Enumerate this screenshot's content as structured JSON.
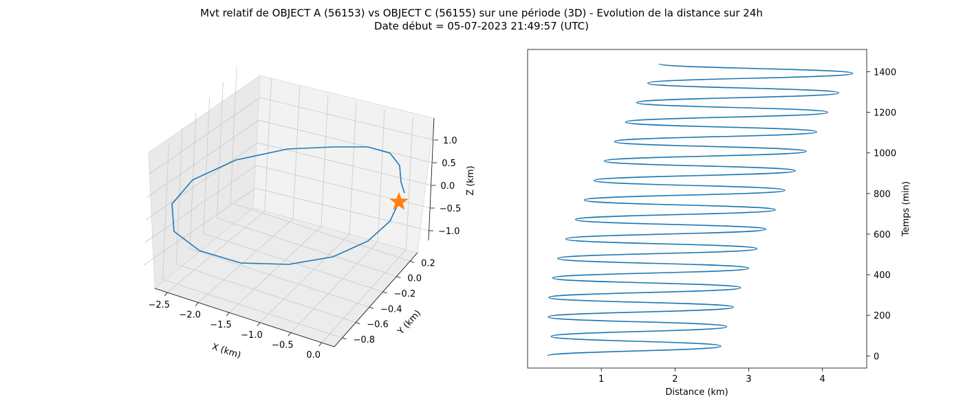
{
  "title": {
    "line1": "Mvt relatif de OBJECT A (56153) vs OBJECT C (56155) sur une période (3D) - Evolution de la distance sur 24h",
    "line2": "Date début = 05-07-2023 21:49:57 (UTC)"
  },
  "colors": {
    "series": "#1f77b4",
    "marker": "#ff7f0e",
    "pane": "#f2f2f2",
    "grid": "#c8c8c8"
  },
  "chart_data": [
    {
      "type": "line3d",
      "xlabel": "X (km)",
      "ylabel": "Y (km)",
      "zlabel": "Z (km)",
      "x_ticks": [
        "−2.5",
        "−2.0",
        "−1.5",
        "−1.0",
        "−0.5",
        "0.0"
      ],
      "y_ticks": [
        "0.2",
        "0.0",
        "−0.2",
        "−0.4",
        "−0.6",
        "−0.8"
      ],
      "z_ticks": [
        "1.0",
        "0.5",
        "0.0",
        "−0.5",
        "−1.0"
      ],
      "marker": {
        "shape": "star",
        "at": "start"
      }
    },
    {
      "type": "line",
      "xlabel": "Distance (km)",
      "ylabel": "Temps (min)",
      "ylabel_position": "right",
      "xlim": [
        0.0,
        4.6
      ],
      "ylim": [
        -60,
        1510
      ],
      "x_ticks": [
        1,
        2,
        3,
        4
      ],
      "y_ticks": [
        0,
        200,
        400,
        600,
        800,
        1000,
        1200,
        1400
      ],
      "series": [
        {
          "points": [
            [
              0.27,
              0
            ],
            [
              2.62,
              48
            ],
            [
              0.32,
              96
            ],
            [
              2.7,
              144
            ],
            [
              0.28,
              192
            ],
            [
              2.79,
              240
            ],
            [
              0.29,
              288
            ],
            [
              2.89,
              336
            ],
            [
              0.34,
              384
            ],
            [
              3.0,
              432
            ],
            [
              0.41,
              480
            ],
            [
              3.11,
              528
            ],
            [
              0.52,
              576
            ],
            [
              3.23,
              624
            ],
            [
              0.65,
              672
            ],
            [
              3.36,
              720
            ],
            [
              0.77,
              768
            ],
            [
              3.49,
              816
            ],
            [
              0.9,
              864
            ],
            [
              3.63,
              912
            ],
            [
              1.04,
              960
            ],
            [
              3.78,
              1008
            ],
            [
              1.18,
              1056
            ],
            [
              3.92,
              1104
            ],
            [
              1.33,
              1152
            ],
            [
              4.07,
              1200
            ],
            [
              1.48,
              1248
            ],
            [
              4.22,
              1296
            ],
            [
              1.63,
              1344
            ],
            [
              4.41,
              1392
            ],
            [
              1.78,
              1440
            ]
          ]
        }
      ]
    }
  ]
}
